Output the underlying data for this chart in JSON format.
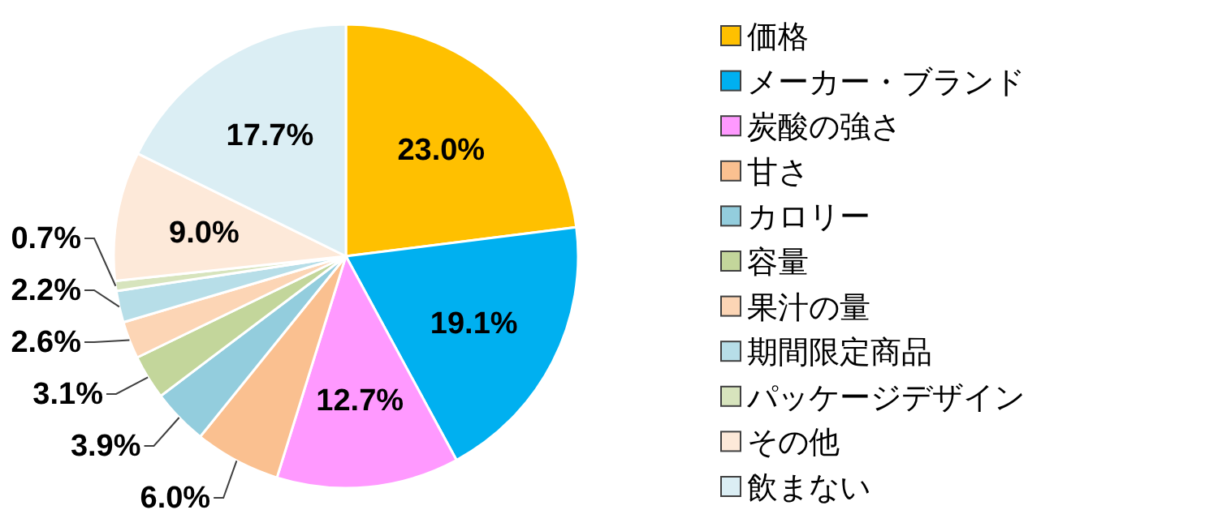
{
  "chart_data": {
    "type": "pie",
    "categories": [
      "価格",
      "メーカー・ブランド",
      "炭酸の強さ",
      "甘さ",
      "カロリー",
      "容量",
      "果汁の量",
      "期間限定商品",
      "パッケージデザイン",
      "その他",
      "飲まない"
    ],
    "values": [
      23.0,
      19.1,
      12.7,
      6.0,
      3.9,
      3.1,
      2.6,
      2.2,
      0.7,
      9.0,
      17.7
    ],
    "colors": [
      "#ffc000",
      "#00b0f0",
      "#ff99ff",
      "#fac090",
      "#93cddd",
      "#c3d69b",
      "#fcd5b5",
      "#b7dee8",
      "#d7e4bd",
      "#fde9d9",
      "#dbeef4"
    ],
    "value_labels": [
      "23.0%",
      "19.1%",
      "12.7%",
      "6.0%",
      "3.9%",
      "3.1%",
      "2.6%",
      "2.2%",
      "0.7%",
      "9.0%",
      "17.7%"
    ],
    "legend": "right"
  }
}
